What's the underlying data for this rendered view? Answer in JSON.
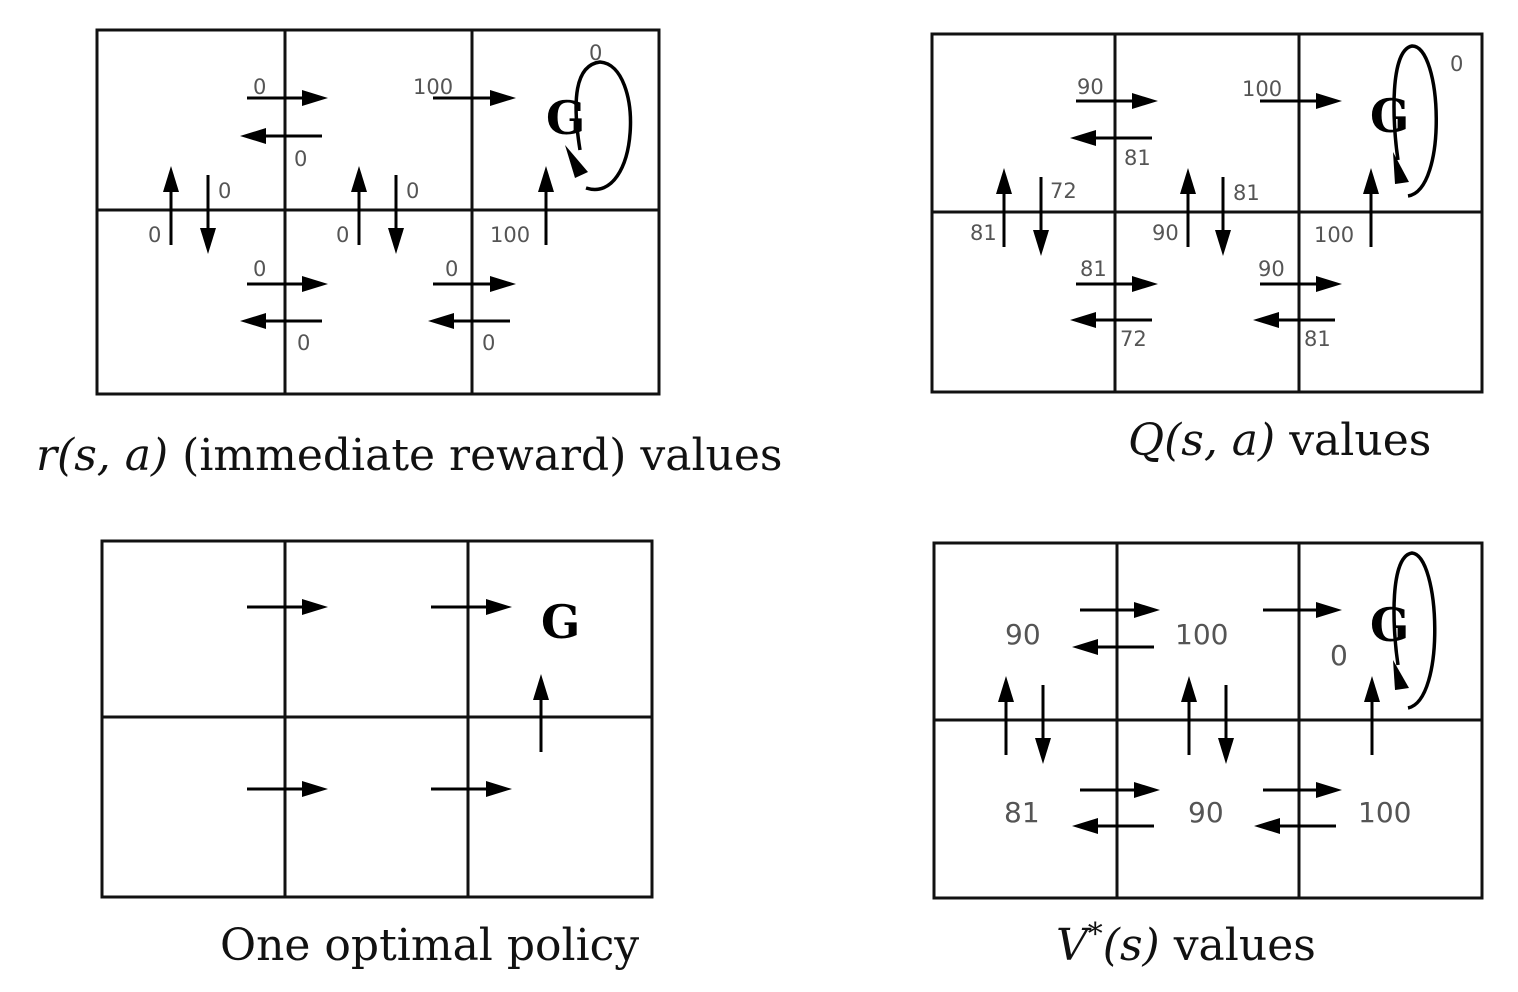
{
  "goal_label": "G",
  "panels": {
    "reward": {
      "caption": {
        "func": "r",
        "args": "(s, a)",
        "rest": " (immediate reward) values"
      },
      "labels": {
        "loop": "0",
        "r1_right": "0",
        "r1_left": "0",
        "r2_right": "100",
        "c1_up": "0",
        "c1_down": "0",
        "c2_up": "0",
        "c2_down": "0",
        "c3_up": "100",
        "b1_right": "0",
        "b1_left": "0",
        "b2_right": "0",
        "b2_left": "0"
      }
    },
    "q": {
      "caption": {
        "func": "Q",
        "args": "(s, a)",
        "rest": " values"
      },
      "labels": {
        "loop": "0",
        "r1_right": "90",
        "r1_left": "81",
        "r2_right": "100",
        "c1_up": "81",
        "c1_down": "72",
        "c2_up": "90",
        "c2_down": "81",
        "c3_up": "100",
        "b1_right": "81",
        "b1_left": "72",
        "b2_right": "90",
        "b2_left": "81"
      }
    },
    "policy": {
      "caption": {
        "text": "One optimal policy"
      }
    },
    "v": {
      "caption": {
        "func": "V",
        "sup": "*",
        "args": "(s)",
        "rest": " values"
      },
      "cells": {
        "top_left": "90",
        "top_mid": "100",
        "top_right": "0",
        "bottom_left": "81",
        "bottom_mid": "90",
        "bottom_right": "100"
      }
    }
  }
}
